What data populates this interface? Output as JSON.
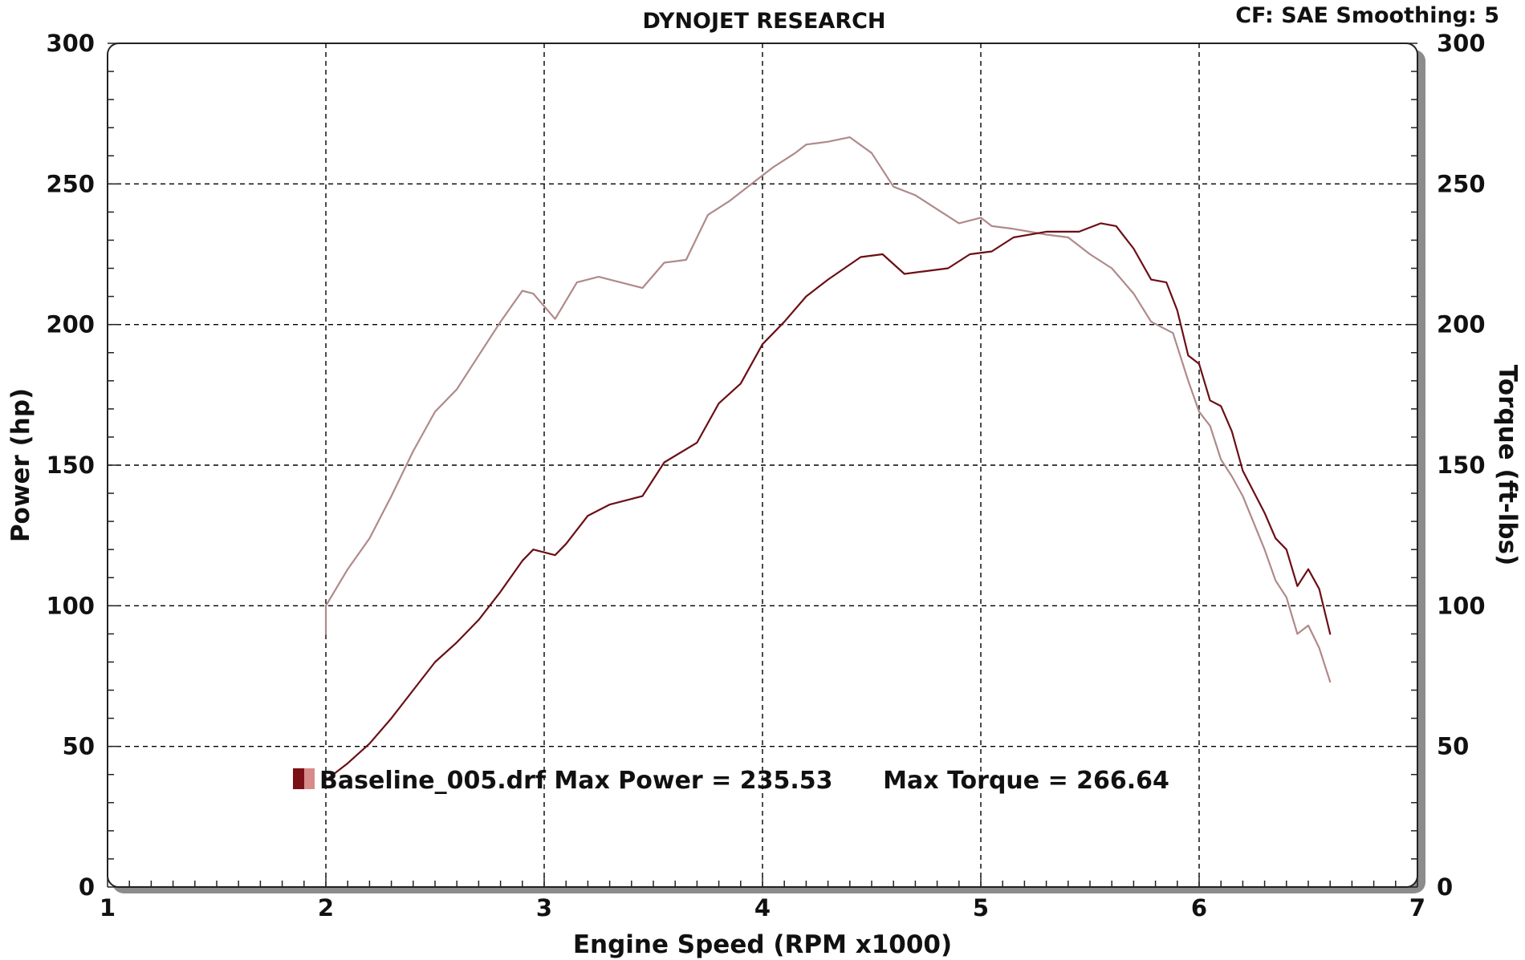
{
  "header": {
    "title": "DYNOJET RESEARCH",
    "correction": "CF: SAE  Smoothing: 5"
  },
  "colors": {
    "background": "#ffffff",
    "plot_area": "#ffffff",
    "frame_shadow": "#8c8c8c",
    "grid": "#000000",
    "power_line": "#6b0f14",
    "torque_line": "#b08a8a",
    "legend_swatch_dark": "#7a0f16",
    "legend_swatch_light": "#d98a8a"
  },
  "legend": {
    "text": "Baseline_005.drf Max Power = 235.53      Max Torque = 266.64"
  },
  "chart_data": {
    "type": "line",
    "title": "DYNOJET RESEARCH",
    "xlabel": "Engine Speed (RPM x1000)",
    "ylabel": "Power (hp)",
    "y2label": "Torque (ft-lbs)",
    "xlim": [
      1,
      7
    ],
    "ylim": [
      0,
      300
    ],
    "y2lim": [
      0,
      300
    ],
    "x_ticks": [
      "1",
      "2",
      "3",
      "4",
      "5",
      "6",
      "7"
    ],
    "y_ticks": [
      "0",
      "50",
      "100",
      "150",
      "200",
      "250",
      "300"
    ],
    "y2_ticks": [
      "0",
      "50",
      "100",
      "150",
      "200",
      "250",
      "300"
    ],
    "grid": true,
    "grid_style": "dashed",
    "series": [
      {
        "name": "Power",
        "axis": "left",
        "color": "#6b0f14",
        "points": [
          [
            2.0,
            38
          ],
          [
            2.1,
            44
          ],
          [
            2.2,
            51
          ],
          [
            2.3,
            60
          ],
          [
            2.4,
            70
          ],
          [
            2.5,
            80
          ],
          [
            2.6,
            87
          ],
          [
            2.7,
            95
          ],
          [
            2.8,
            105
          ],
          [
            2.9,
            116
          ],
          [
            2.95,
            120
          ],
          [
            3.05,
            118
          ],
          [
            3.1,
            122
          ],
          [
            3.2,
            132
          ],
          [
            3.3,
            136
          ],
          [
            3.45,
            139
          ],
          [
            3.55,
            151
          ],
          [
            3.7,
            158
          ],
          [
            3.8,
            172
          ],
          [
            3.9,
            179
          ],
          [
            4.0,
            193
          ],
          [
            4.1,
            201
          ],
          [
            4.2,
            210
          ],
          [
            4.3,
            216
          ],
          [
            4.45,
            224
          ],
          [
            4.55,
            225
          ],
          [
            4.65,
            218
          ],
          [
            4.75,
            219
          ],
          [
            4.85,
            220
          ],
          [
            4.95,
            225
          ],
          [
            5.05,
            226
          ],
          [
            5.15,
            231
          ],
          [
            5.3,
            233
          ],
          [
            5.45,
            233
          ],
          [
            5.55,
            236
          ],
          [
            5.62,
            235
          ],
          [
            5.7,
            227
          ],
          [
            5.78,
            216
          ],
          [
            5.85,
            215
          ],
          [
            5.9,
            205
          ],
          [
            5.95,
            189
          ],
          [
            6.0,
            186
          ],
          [
            6.05,
            173
          ],
          [
            6.1,
            171
          ],
          [
            6.15,
            162
          ],
          [
            6.2,
            148
          ],
          [
            6.3,
            133
          ],
          [
            6.35,
            124
          ],
          [
            6.4,
            120
          ],
          [
            6.45,
            107
          ],
          [
            6.5,
            113
          ],
          [
            6.55,
            106
          ],
          [
            6.6,
            90
          ]
        ]
      },
      {
        "name": "Torque",
        "axis": "right",
        "color": "#b08a8a",
        "points": [
          [
            2.0,
            90
          ],
          [
            2.0,
            100
          ],
          [
            2.1,
            113
          ],
          [
            2.2,
            124
          ],
          [
            2.3,
            139
          ],
          [
            2.4,
            155
          ],
          [
            2.5,
            169
          ],
          [
            2.6,
            177
          ],
          [
            2.7,
            189
          ],
          [
            2.8,
            201
          ],
          [
            2.9,
            212
          ],
          [
            2.95,
            211
          ],
          [
            3.05,
            202
          ],
          [
            3.15,
            215
          ],
          [
            3.25,
            217
          ],
          [
            3.35,
            215
          ],
          [
            3.45,
            213
          ],
          [
            3.55,
            222
          ],
          [
            3.65,
            223
          ],
          [
            3.75,
            239
          ],
          [
            3.85,
            244
          ],
          [
            3.95,
            250
          ],
          [
            4.05,
            256
          ],
          [
            4.15,
            261
          ],
          [
            4.2,
            264
          ],
          [
            4.3,
            265
          ],
          [
            4.4,
            266.6
          ],
          [
            4.5,
            261
          ],
          [
            4.6,
            249
          ],
          [
            4.7,
            246
          ],
          [
            4.8,
            241
          ],
          [
            4.9,
            236
          ],
          [
            5.0,
            238
          ],
          [
            5.05,
            235
          ],
          [
            5.15,
            234
          ],
          [
            5.3,
            232
          ],
          [
            5.4,
            231
          ],
          [
            5.5,
            225
          ],
          [
            5.6,
            220
          ],
          [
            5.7,
            211
          ],
          [
            5.78,
            201
          ],
          [
            5.88,
            197
          ],
          [
            5.95,
            180
          ],
          [
            6.0,
            169
          ],
          [
            6.05,
            164
          ],
          [
            6.1,
            152
          ],
          [
            6.15,
            146
          ],
          [
            6.2,
            139
          ],
          [
            6.3,
            120
          ],
          [
            6.35,
            109
          ],
          [
            6.4,
            103
          ],
          [
            6.45,
            90
          ],
          [
            6.5,
            93
          ],
          [
            6.55,
            85
          ],
          [
            6.6,
            73
          ]
        ]
      }
    ]
  }
}
